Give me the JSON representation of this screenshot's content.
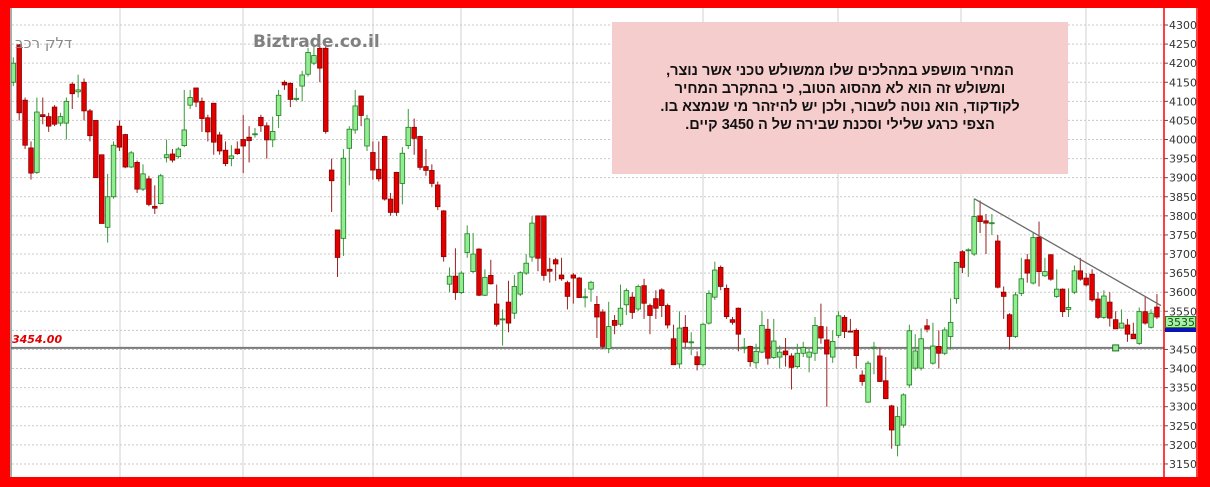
{
  "chart_data": {
    "type": "candlestick",
    "title": "",
    "watermarks": [
      "דלק רכב",
      "Biztrade.co.il"
    ],
    "ylim": [
      3130,
      4330
    ],
    "yticks": [
      4300,
      4250,
      4200,
      4150,
      4100,
      4050,
      4000,
      3950,
      3900,
      3850,
      3800,
      3750,
      3700,
      3650,
      3600,
      3550,
      3500,
      3450,
      3400,
      3350,
      3300,
      3250,
      3200,
      3150
    ],
    "ytick_labels": [
      "4300",
      "4250",
      "4200",
      "4150",
      "4100",
      "4050",
      "4000",
      "3950",
      "3900",
      "3850",
      "3800",
      "3750",
      "3700",
      "3650",
      "3600",
      "3550",
      "",
      "3450",
      "3400",
      "3350",
      "3300",
      "3250",
      "3200",
      "3150"
    ],
    "grid": true,
    "horizontal_line": {
      "value": 3454.0,
      "label": "3454.00"
    },
    "last_price": {
      "value": 3535,
      "label": "3535"
    },
    "trendline": {
      "from_candle": 164,
      "from_value": 3845,
      "to_candle": 195,
      "to_value": 3565
    },
    "marker": {
      "candle": 188,
      "value": 3454
    },
    "colors": {
      "up": "#90ee90",
      "up_border": "#1f7a1f",
      "down": "#e00000",
      "down_border": "#8b0000",
      "hline": "#7a7a7a",
      "trendline": "#6a6a6a",
      "frame": "#ff0000"
    },
    "ohlc": [
      [
        4150,
        4215,
        4140,
        4200
      ],
      [
        4248,
        4250,
        4050,
        4070
      ],
      [
        4103,
        4110,
        3975,
        3985
      ],
      [
        3978,
        3995,
        3895,
        3912
      ],
      [
        3914,
        4110,
        3910,
        4072
      ],
      [
        4065,
        4110,
        4040,
        4060
      ],
      [
        4060,
        4070,
        4020,
        4035
      ],
      [
        4085,
        4090,
        4035,
        4040
      ],
      [
        4043,
        4070,
        4035,
        4060
      ],
      [
        4043,
        4110,
        4000,
        4100
      ],
      [
        4145,
        4150,
        4080,
        4120
      ],
      [
        4125,
        4170,
        4110,
        4130
      ],
      [
        4150,
        4160,
        4050,
        4075
      ],
      [
        4075,
        4080,
        3995,
        4010
      ],
      [
        4050,
        4050,
        3900,
        3900
      ],
      [
        3960,
        3960,
        3780,
        3780
      ],
      [
        3770,
        3910,
        3730,
        3850
      ],
      [
        3850,
        3995,
        3845,
        3985
      ],
      [
        4035,
        4050,
        3970,
        3980
      ],
      [
        4013,
        4015,
        3925,
        3928
      ],
      [
        3928,
        3970,
        3925,
        3965
      ],
      [
        3940,
        3945,
        3860,
        3870
      ],
      [
        3870,
        3935,
        3865,
        3910
      ],
      [
        3897,
        3905,
        3825,
        3830
      ],
      [
        3825,
        3880,
        3805,
        3820
      ],
      [
        3832,
        3910,
        3830,
        3905
      ],
      [
        3953,
        4000,
        3940,
        3960
      ],
      [
        3962,
        3975,
        3940,
        3946
      ],
      [
        3955,
        3980,
        3950,
        3975
      ],
      [
        3984,
        4130,
        3980,
        4025
      ],
      [
        4090,
        4130,
        4080,
        4110
      ],
      [
        4135,
        4135,
        4085,
        4098
      ],
      [
        4100,
        4110,
        4020,
        4055
      ],
      [
        4057,
        4065,
        3995,
        4020
      ],
      [
        4095,
        4095,
        3960,
        3993
      ],
      [
        4012,
        4020,
        3960,
        3970
      ],
      [
        3972,
        3995,
        3930,
        3937
      ],
      [
        3950,
        3985,
        3930,
        3957
      ],
      [
        3975,
        3995,
        3960,
        3963
      ],
      [
        4000,
        4064,
        3912,
        3983
      ],
      [
        4006,
        4035,
        3940,
        3997
      ],
      [
        4013,
        4030,
        4005,
        4015
      ],
      [
        4058,
        4065,
        4020,
        4036
      ],
      [
        4036,
        4045,
        3950,
        3999
      ],
      [
        3999,
        4060,
        3980,
        4021
      ],
      [
        4063,
        4130,
        4030,
        4116
      ],
      [
        4150,
        4155,
        4130,
        4143
      ],
      [
        4147,
        4150,
        4085,
        4105
      ],
      [
        4105,
        4135,
        4100,
        4108
      ],
      [
        4140,
        4180,
        4100,
        4169
      ],
      [
        4171,
        4240,
        4165,
        4228
      ],
      [
        4200,
        4245,
        4195,
        4220
      ],
      [
        4239,
        4245,
        4150,
        4187
      ],
      [
        4239,
        4245,
        4015,
        4021
      ],
      [
        3920,
        3950,
        3810,
        3892
      ],
      [
        3763,
        3763,
        3640,
        3691
      ],
      [
        3741,
        3975,
        3695,
        3951
      ],
      [
        3977,
        4035,
        3880,
        4027
      ],
      [
        4025,
        4130,
        4015,
        4088
      ],
      [
        4114,
        4115,
        4035,
        4063
      ],
      [
        3983,
        4065,
        3970,
        4054
      ],
      [
        3966,
        3995,
        3895,
        3920
      ],
      [
        3922,
        3995,
        3890,
        3897
      ],
      [
        4008,
        4010,
        3840,
        3844
      ],
      [
        3844,
        3860,
        3800,
        3809
      ],
      [
        3914,
        3915,
        3800,
        3809
      ],
      [
        3885,
        3980,
        3830,
        3964
      ],
      [
        3984,
        4080,
        3975,
        4032
      ],
      [
        4032,
        4055,
        3960,
        4003
      ],
      [
        4008,
        4010,
        3920,
        3927
      ],
      [
        3929,
        3975,
        3905,
        3919
      ],
      [
        3919,
        3935,
        3875,
        3885
      ],
      [
        3881,
        3890,
        3815,
        3824
      ],
      [
        3813,
        3815,
        3680,
        3693
      ],
      [
        3621,
        3665,
        3600,
        3642
      ],
      [
        3642,
        3715,
        3580,
        3599
      ],
      [
        3599,
        3655,
        3595,
        3650
      ],
      [
        3704,
        3775,
        3690,
        3753
      ],
      [
        3654,
        3755,
        3650,
        3700
      ],
      [
        3713,
        3715,
        3590,
        3592
      ],
      [
        3592,
        3660,
        3590,
        3639
      ],
      [
        3644,
        3685,
        3620,
        3622
      ],
      [
        3569,
        3620,
        3510,
        3516
      ],
      [
        3528,
        3555,
        3460,
        3530
      ],
      [
        3574,
        3630,
        3495,
        3519
      ],
      [
        3545,
        3645,
        3530,
        3615
      ],
      [
        3595,
        3655,
        3590,
        3651
      ],
      [
        3650,
        3700,
        3645,
        3676
      ],
      [
        3692,
        3800,
        3680,
        3781
      ],
      [
        3800,
        3800,
        3655,
        3689
      ],
      [
        3800,
        3800,
        3630,
        3644
      ],
      [
        3660,
        3690,
        3625,
        3655
      ],
      [
        3685,
        3690,
        3630,
        3674
      ],
      [
        3645,
        3690,
        3630,
        3635
      ],
      [
        3625,
        3630,
        3555,
        3589
      ],
      [
        3645,
        3650,
        3570,
        3637
      ],
      [
        3637,
        3640,
        3585,
        3586
      ],
      [
        3587,
        3610,
        3560,
        3588
      ],
      [
        3608,
        3630,
        3575,
        3626
      ],
      [
        3568,
        3590,
        3480,
        3535
      ],
      [
        3548,
        3555,
        3450,
        3458
      ],
      [
        3452,
        3575,
        3440,
        3510
      ],
      [
        3526,
        3540,
        3490,
        3513
      ],
      [
        3516,
        3620,
        3510,
        3558
      ],
      [
        3567,
        3610,
        3540,
        3604
      ],
      [
        3587,
        3600,
        3530,
        3547
      ],
      [
        3556,
        3620,
        3550,
        3615
      ],
      [
        3617,
        3635,
        3530,
        3571
      ],
      [
        3565,
        3570,
        3490,
        3539
      ],
      [
        3583,
        3605,
        3530,
        3558
      ],
      [
        3606,
        3610,
        3535,
        3565
      ],
      [
        3565,
        3570,
        3505,
        3514
      ],
      [
        3478,
        3515,
        3410,
        3410
      ],
      [
        3412,
        3550,
        3400,
        3506
      ],
      [
        3508,
        3540,
        3455,
        3469
      ],
      [
        3468,
        3495,
        3435,
        3470
      ],
      [
        3431,
        3445,
        3395,
        3410
      ],
      [
        3410,
        3520,
        3405,
        3516
      ],
      [
        3519,
        3605,
        3515,
        3597
      ],
      [
        3587,
        3680,
        3580,
        3658
      ],
      [
        3665,
        3670,
        3605,
        3615
      ],
      [
        3610,
        3620,
        3530,
        3536
      ],
      [
        3528,
        3535,
        3515,
        3521
      ],
      [
        3558,
        3560,
        3445,
        3490
      ],
      [
        3455,
        3480,
        3440,
        3456
      ],
      [
        3458,
        3460,
        3405,
        3418
      ],
      [
        3415,
        3465,
        3400,
        3445
      ],
      [
        3443,
        3550,
        3440,
        3513
      ],
      [
        3503,
        3530,
        3410,
        3427
      ],
      [
        3429,
        3530,
        3425,
        3472
      ],
      [
        3430,
        3460,
        3400,
        3443
      ],
      [
        3446,
        3480,
        3405,
        3436
      ],
      [
        3433,
        3440,
        3345,
        3403
      ],
      [
        3405,
        3465,
        3400,
        3440
      ],
      [
        3440,
        3470,
        3430,
        3455
      ],
      [
        3430,
        3450,
        3390,
        3443
      ],
      [
        3440,
        3535,
        3420,
        3513
      ],
      [
        3510,
        3570,
        3465,
        3480
      ],
      [
        3475,
        3510,
        3300,
        3438
      ],
      [
        3430,
        3500,
        3415,
        3471
      ],
      [
        3487,
        3550,
        3480,
        3538
      ],
      [
        3534,
        3540,
        3480,
        3497
      ],
      [
        3498,
        3530,
        3495,
        3497
      ],
      [
        3500,
        3505,
        3400,
        3434
      ],
      [
        3383,
        3395,
        3355,
        3366
      ],
      [
        3312,
        3420,
        3310,
        3414
      ],
      [
        3454,
        3470,
        3385,
        3456
      ],
      [
        3433,
        3455,
        3365,
        3366
      ],
      [
        3368,
        3430,
        3320,
        3321
      ],
      [
        3302,
        3305,
        3190,
        3239
      ],
      [
        3199,
        3300,
        3170,
        3274
      ],
      [
        3252,
        3335,
        3245,
        3331
      ],
      [
        3357,
        3515,
        3350,
        3499
      ],
      [
        3401,
        3490,
        3395,
        3446
      ],
      [
        3401,
        3505,
        3395,
        3478
      ],
      [
        3512,
        3530,
        3495,
        3503
      ],
      [
        3414,
        3520,
        3410,
        3459
      ],
      [
        3458,
        3500,
        3400,
        3440
      ],
      [
        3440,
        3508,
        3435,
        3501
      ],
      [
        3484,
        3584,
        3449,
        3521
      ],
      [
        3583,
        3680,
        3570,
        3678
      ],
      [
        3706,
        3710,
        3650,
        3665
      ],
      [
        3709,
        3715,
        3640,
        3711
      ],
      [
        3700,
        3845,
        3695,
        3798
      ],
      [
        3800,
        3840,
        3755,
        3785
      ],
      [
        3787,
        3805,
        3700,
        3781
      ],
      [
        3780,
        3805,
        3750,
        3782
      ],
      [
        3734,
        3750,
        3610,
        3613
      ],
      [
        3600,
        3615,
        3530,
        3589
      ],
      [
        3541,
        3545,
        3450,
        3484
      ],
      [
        3484,
        3600,
        3480,
        3593
      ],
      [
        3597,
        3690,
        3590,
        3635
      ],
      [
        3685,
        3700,
        3625,
        3650
      ],
      [
        3624,
        3755,
        3620,
        3743
      ],
      [
        3744,
        3785,
        3615,
        3654
      ],
      [
        3643,
        3690,
        3640,
        3654
      ],
      [
        3698,
        3700,
        3630,
        3634
      ],
      [
        3589,
        3660,
        3585,
        3608
      ],
      [
        3608,
        3610,
        3535,
        3549
      ],
      [
        3555,
        3610,
        3535,
        3560
      ],
      [
        3600,
        3670,
        3595,
        3656
      ],
      [
        3656,
        3690,
        3630,
        3634
      ],
      [
        3637,
        3650,
        3615,
        3619
      ],
      [
        3647,
        3660,
        3575,
        3580
      ],
      [
        3582,
        3600,
        3530,
        3534
      ],
      [
        3534,
        3605,
        3530,
        3590
      ],
      [
        3574,
        3600,
        3510,
        3532
      ],
      [
        3528,
        3550,
        3505,
        3504
      ],
      [
        3506,
        3555,
        3505,
        3519
      ],
      [
        3514,
        3530,
        3470,
        3490
      ],
      [
        3490,
        3520,
        3478,
        3478
      ],
      [
        3466,
        3560,
        3462,
        3549
      ],
      [
        3549,
        3590,
        3515,
        3519
      ],
      [
        3508,
        3555,
        3505,
        3545
      ],
      [
        3561,
        3595,
        3530,
        3535
      ]
    ]
  },
  "annotation": {
    "lines": [
      "המחיר מושפע  במהלכים שלו  ממשולש טכני אשר נוצר,",
      "ומשולש זה הוא לא מהסוג  הטוב, כי בהתקרב   המחיר",
      "לקודקוד,  הוא נוטה לשבור, ולכן יש להיזהר מי שנמצא    בו.",
      "הצפי כרגע שלילי וסכנת שבירה של ה 3450 קיים."
    ]
  }
}
